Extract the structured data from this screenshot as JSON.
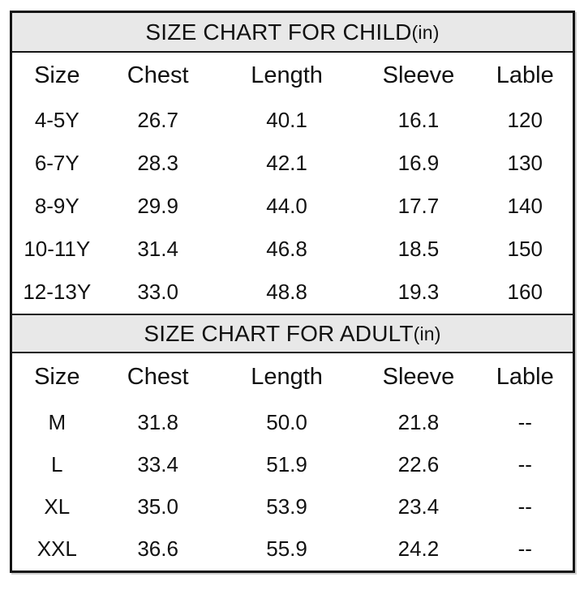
{
  "style": {
    "header_bg": "#e8e8e8",
    "border_color": "#141414",
    "text_color": "#111111",
    "page_bg": "#ffffff"
  },
  "chart_data": [
    {
      "type": "table",
      "title": "SIZE CHART FOR CHILD(in)",
      "title_main": "SIZE CHART FOR CHILD",
      "title_suffix": "(in)",
      "columns": [
        "Size",
        "Chest",
        "Length",
        "Sleeve",
        "Lable"
      ],
      "rows": [
        [
          "4-5Y",
          "26.7",
          "40.1",
          "16.1",
          "120"
        ],
        [
          "6-7Y",
          "28.3",
          "42.1",
          "16.9",
          "130"
        ],
        [
          "8-9Y",
          "29.9",
          "44.0",
          "17.7",
          "140"
        ],
        [
          "10-11Y",
          "31.4",
          "46.8",
          "18.5",
          "150"
        ],
        [
          "12-13Y",
          "33.0",
          "48.8",
          "19.3",
          "160"
        ]
      ]
    },
    {
      "type": "table",
      "title": "SIZE CHART FOR ADULT(in)",
      "title_main": "SIZE CHART FOR ADULT",
      "title_suffix": "(in)",
      "columns": [
        "Size",
        "Chest",
        "Length",
        "Sleeve",
        "Lable"
      ],
      "rows": [
        [
          "M",
          "31.8",
          "50.0",
          "21.8",
          "--"
        ],
        [
          "L",
          "33.4",
          "51.9",
          "22.6",
          "--"
        ],
        [
          "XL",
          "35.0",
          "53.9",
          "23.4",
          "--"
        ],
        [
          "XXL",
          "36.6",
          "55.9",
          "24.2",
          "--"
        ]
      ]
    }
  ]
}
